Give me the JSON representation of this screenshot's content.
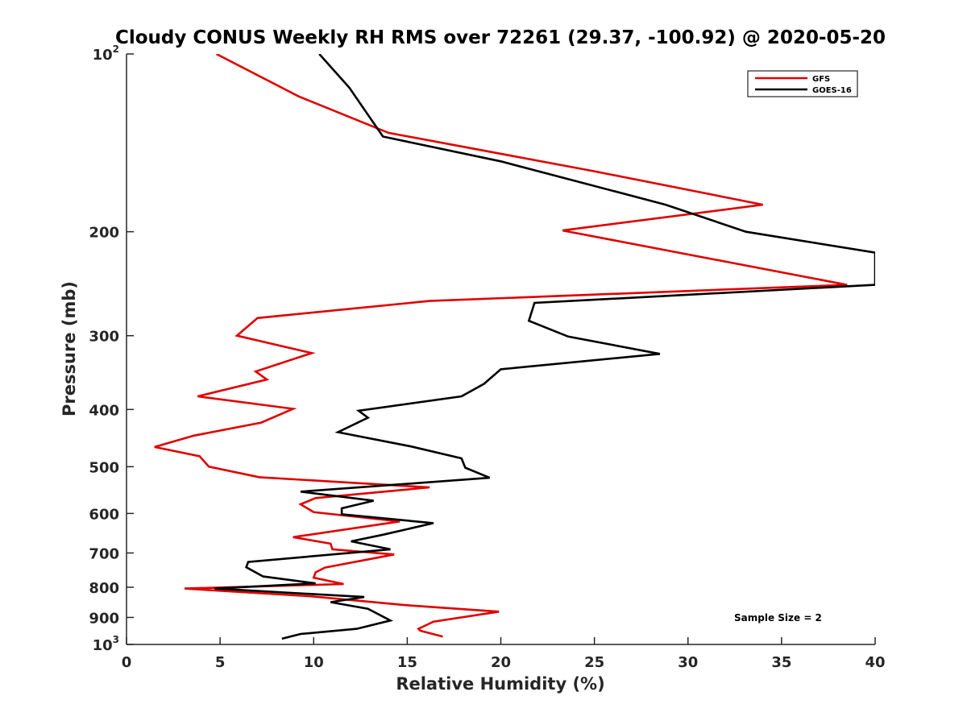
{
  "chart_data": {
    "type": "line",
    "title": "Cloudy CONUS Weekly RH RMS over 72261 (29.37, -100.92) @ 2020-05-20",
    "xlabel": "Relative Humidity (%)",
    "ylabel": "Pressure (mb)",
    "xlim": [
      0,
      40
    ],
    "ylim": [
      100,
      1000
    ],
    "y_scale": "log",
    "y_reversed": true,
    "x_ticks": [
      0,
      5,
      10,
      15,
      20,
      25,
      30,
      35,
      40
    ],
    "x_tick_labels": [
      "0",
      "5",
      "10",
      "15",
      "20",
      "25",
      "30",
      "35",
      "40"
    ],
    "y_ticks": [
      100,
      200,
      300,
      400,
      500,
      600,
      700,
      800,
      900,
      1000
    ],
    "y_tick_labels": [
      {
        "base": "10",
        "exp": "2"
      },
      {
        "base": "200",
        "exp": ""
      },
      {
        "base": "300",
        "exp": ""
      },
      {
        "base": "400",
        "exp": ""
      },
      {
        "base": "500",
        "exp": ""
      },
      {
        "base": "600",
        "exp": ""
      },
      {
        "base": "700",
        "exp": ""
      },
      {
        "base": "800",
        "exp": ""
      },
      {
        "base": "900",
        "exp": ""
      },
      {
        "base": "10",
        "exp": "3"
      }
    ],
    "grid": false,
    "legend": {
      "position": "top-right"
    },
    "annotation": "Sample Size = 2",
    "series": [
      {
        "name": "GFS",
        "color": "#e00000",
        "points": [
          [
            4.8,
            100
          ],
          [
            9.2,
            118
          ],
          [
            14.0,
            136
          ],
          [
            25.0,
            158
          ],
          [
            34.0,
            180
          ],
          [
            23.3,
            199
          ],
          [
            38.5,
            246
          ],
          [
            16.2,
            262
          ],
          [
            7.0,
            280
          ],
          [
            5.9,
            300
          ],
          [
            9.9,
            321
          ],
          [
            6.9,
            345
          ],
          [
            7.5,
            356
          ],
          [
            3.8,
            380
          ],
          [
            8.9,
            399
          ],
          [
            7.2,
            421
          ],
          [
            3.6,
            443
          ],
          [
            1.5,
            463
          ],
          [
            3.9,
            480
          ],
          [
            4.4,
            500
          ],
          [
            7.1,
            521
          ],
          [
            14.5,
            538
          ],
          [
            16.2,
            542
          ],
          [
            10.1,
            565
          ],
          [
            9.3,
            579
          ],
          [
            10.0,
            597
          ],
          [
            14.6,
            619
          ],
          [
            8.9,
            658
          ],
          [
            10.9,
            675
          ],
          [
            11.0,
            690
          ],
          [
            14.3,
            704
          ],
          [
            10.6,
            741
          ],
          [
            10.1,
            755
          ],
          [
            10.0,
            771
          ],
          [
            11.6,
            790
          ],
          [
            3.1,
            804
          ],
          [
            9.9,
            829
          ],
          [
            14.9,
            858
          ],
          [
            19.9,
            880
          ],
          [
            16.4,
            915
          ],
          [
            15.6,
            941
          ],
          [
            15.7,
            948
          ],
          [
            16.9,
            970
          ]
        ]
      },
      {
        "name": "GOES-16",
        "color": "#000000",
        "points": [
          [
            10.3,
            100
          ],
          [
            11.9,
            114
          ],
          [
            13.7,
            138
          ],
          [
            20.0,
            152
          ],
          [
            28.8,
            180
          ],
          [
            33.1,
            200
          ],
          [
            40.0,
            217
          ],
          [
            40.0,
            246
          ],
          [
            21.8,
            264
          ],
          [
            21.5,
            283
          ],
          [
            23.6,
            301
          ],
          [
            28.5,
            322
          ],
          [
            20.0,
            342
          ],
          [
            19.1,
            362
          ],
          [
            17.9,
            380
          ],
          [
            12.4,
            402
          ],
          [
            12.9,
            413
          ],
          [
            11.3,
            437
          ],
          [
            15.2,
            462
          ],
          [
            17.9,
            484
          ],
          [
            18.1,
            502
          ],
          [
            19.4,
            522
          ],
          [
            9.3,
            551
          ],
          [
            13.2,
            571
          ],
          [
            11.5,
            588
          ],
          [
            11.5,
            602
          ],
          [
            16.4,
            623
          ],
          [
            13.7,
            652
          ],
          [
            12.0,
            669
          ],
          [
            14.1,
            690
          ],
          [
            6.5,
            725
          ],
          [
            6.4,
            740
          ],
          [
            7.3,
            767
          ],
          [
            10.1,
            788
          ],
          [
            4.7,
            804
          ],
          [
            12.7,
            831
          ],
          [
            10.9,
            848
          ],
          [
            12.9,
            870
          ],
          [
            14.1,
            911
          ],
          [
            12.3,
            941
          ],
          [
            9.3,
            960
          ],
          [
            8.3,
            978
          ]
        ]
      }
    ]
  }
}
